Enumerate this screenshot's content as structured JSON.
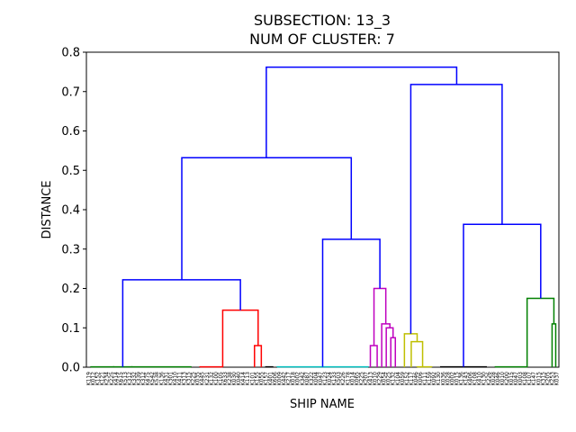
{
  "chart_data": {
    "type": "dendrogram",
    "title_line1": "SUBSECTION: 13_3",
    "title_line2": "NUM OF CLUSTER: 7",
    "xlabel": "SHIP NAME",
    "ylabel": "DISTANCE",
    "ylim": [
      0,
      0.8
    ],
    "yticks": [
      "0.0",
      "0.1",
      "0.2",
      "0.3",
      "0.4",
      "0.5",
      "0.6",
      "0.7",
      "0.8"
    ],
    "leaf_count": 104,
    "leaf_labels": [
      "K119",
      "K012",
      "K152",
      "K121",
      "K234",
      "K225",
      "K414",
      "K615",
      "K513",
      "K312",
      "K332",
      "K339",
      "K312",
      "K475",
      "K542",
      "K538",
      "K136",
      "K431",
      "K301",
      "K410",
      "K411",
      "K313",
      "K315",
      "K225",
      "K035",
      "K445",
      "K231",
      "K132",
      "K100",
      "K105",
      "K633",
      "K238",
      "K030",
      "K040",
      "K414",
      "K113",
      "K101",
      "K155",
      "K055",
      "K157",
      "K401",
      "K606",
      "K009",
      "K442",
      "K217",
      "K018",
      "K002",
      "K342",
      "K087",
      "K322",
      "K004",
      "K047",
      "K123",
      "K024",
      "K133",
      "K503",
      "K226",
      "K178",
      "K014",
      "K065",
      "K225",
      "K207",
      "K413",
      "K010",
      "K229",
      "K054",
      "K025",
      "K132",
      "K104",
      "K059",
      "K152",
      "K117",
      "K046",
      "K006",
      "K111",
      "K159",
      "K092",
      "K130",
      "K036",
      "K028",
      "K002",
      "K015",
      "K136",
      "K143",
      "K406",
      "K108",
      "K410",
      "K130",
      "K226",
      "K028",
      "K046",
      "K010",
      "K200",
      "K015",
      "K047",
      "K003",
      "K108",
      "K107",
      "K147",
      "K015",
      "K315",
      "K205",
      "K253",
      "K037"
    ],
    "colors": {
      "above_threshold": "#0000ff",
      "green": "#008000",
      "red": "#ff0000",
      "cyan": "#00bfbf",
      "magenta": "#bf00bf",
      "olive": "#bfbf00",
      "black": "#000000"
    },
    "links": [
      {
        "color": "#008000",
        "x": [
          1,
          1,
          6,
          6
        ],
        "y": [
          0,
          0.001,
          0.001,
          0
        ]
      },
      {
        "color": "#008000",
        "x": [
          6,
          6,
          10,
          10
        ],
        "y": [
          0,
          0.001,
          0.001,
          0
        ]
      },
      {
        "color": "#008000",
        "x": [
          10,
          10,
          23,
          23
        ],
        "y": [
          0,
          0.001,
          0.001,
          0
        ]
      },
      {
        "color": "#ff0000",
        "x": [
          25,
          25,
          30,
          30
        ],
        "y": [
          0,
          0.001,
          0.001,
          0
        ]
      },
      {
        "color": "#ff0000",
        "x": [
          37,
          37,
          38.5,
          38.5
        ],
        "y": [
          0,
          0.055,
          0.055,
          0
        ]
      },
      {
        "color": "#ff0000",
        "x": [
          30,
          30,
          37.8,
          37.8
        ],
        "y": [
          0,
          0.145,
          0.145,
          0.055
        ]
      },
      {
        "color": "#000000",
        "x": [
          39.5,
          39.5,
          41,
          41
        ],
        "y": [
          0,
          0.001,
          0.001,
          0
        ]
      },
      {
        "color": "#00bfbf",
        "x": [
          42,
          42,
          52,
          52
        ],
        "y": [
          0,
          0.001,
          0.001,
          0
        ]
      },
      {
        "color": "#00bfbf",
        "x": [
          52,
          52,
          62,
          62
        ],
        "y": [
          0,
          0.001,
          0.001,
          0
        ]
      },
      {
        "color": "#bf00bf",
        "x": [
          62.5,
          62.5,
          64,
          64
        ],
        "y": [
          0,
          0.055,
          0.055,
          0
        ]
      },
      {
        "color": "#bf00bf",
        "x": [
          67,
          67,
          68,
          68
        ],
        "y": [
          0,
          0.075,
          0.075,
          0
        ]
      },
      {
        "color": "#bf00bf",
        "x": [
          66,
          66,
          67.5,
          67.5
        ],
        "y": [
          0,
          0.1,
          0.1,
          0.075
        ]
      },
      {
        "color": "#bf00bf",
        "x": [
          65,
          65,
          66.8,
          66.8
        ],
        "y": [
          0,
          0.11,
          0.11,
          0.1
        ]
      },
      {
        "color": "#bf00bf",
        "x": [
          63.3,
          63.3,
          65.9,
          65.9
        ],
        "y": [
          0.055,
          0.2,
          0.2,
          0.11
        ]
      },
      {
        "color": "#0000ff",
        "x": [
          52,
          52,
          64.6,
          64.6
        ],
        "y": [
          0.001,
          0.325,
          0.325,
          0.2
        ]
      },
      {
        "color": "#bfbf00",
        "x": [
          71.5,
          71.5,
          74,
          74
        ],
        "y": [
          0,
          0.065,
          0.065,
          0
        ]
      },
      {
        "color": "#bfbf00",
        "x": [
          70,
          70,
          72.8,
          72.8
        ],
        "y": [
          0,
          0.085,
          0.085,
          0.065
        ]
      },
      {
        "color": "#bfbf00",
        "x": [
          72.8,
          72.8,
          76,
          76
        ],
        "y": [
          0,
          0.001,
          0.001,
          0
        ]
      },
      {
        "color": "#000000",
        "x": [
          78,
          78,
          88,
          88
        ],
        "y": [
          0,
          0.001,
          0.001,
          0
        ]
      },
      {
        "color": "#008000",
        "x": [
          90,
          90,
          97,
          97
        ],
        "y": [
          0,
          0.001,
          0.001,
          0
        ]
      },
      {
        "color": "#008000",
        "x": [
          102.5,
          102.5,
          103.3,
          103.3
        ],
        "y": [
          0,
          0.11,
          0.11,
          0
        ]
      },
      {
        "color": "#008000",
        "x": [
          97,
          97,
          102.9,
          102.9
        ],
        "y": [
          0.001,
          0.175,
          0.175,
          0.11
        ]
      },
      {
        "color": "#0000ff",
        "x": [
          83,
          83,
          100,
          100
        ],
        "y": [
          0.001,
          0.363,
          0.363,
          0.175
        ]
      },
      {
        "color": "#0000ff",
        "x": [
          71.4,
          71.4,
          91.5,
          91.5
        ],
        "y": [
          0.085,
          0.718,
          0.718,
          0.363
        ]
      },
      {
        "color": "#0000ff",
        "x": [
          8,
          8,
          33.9,
          33.9
        ],
        "y": [
          0.001,
          0.222,
          0.222,
          0.145
        ]
      },
      {
        "color": "#0000ff",
        "x": [
          21,
          21,
          58.3,
          58.3
        ],
        "y": [
          0.222,
          0.532,
          0.532,
          0.325
        ]
      },
      {
        "color": "#0000ff",
        "x": [
          39.6,
          39.6,
          81.5,
          81.5
        ],
        "y": [
          0.532,
          0.762,
          0.762,
          0.718
        ]
      }
    ]
  }
}
